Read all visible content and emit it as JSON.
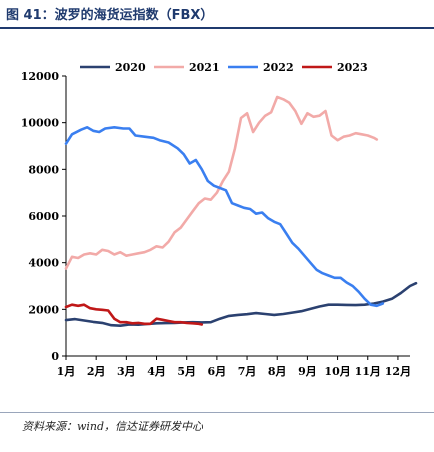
{
  "figure": {
    "title": "图 41：波罗的海货运指数（FBX）",
    "source": "资料来源：wind，信达证券研发中心"
  },
  "chart_data": {
    "type": "line",
    "categories": [
      "1月",
      "2月",
      "3月",
      "4月",
      "5月",
      "6月",
      "7月",
      "8月",
      "9月",
      "10月",
      "11月",
      "12月"
    ],
    "x_domain": [
      1,
      12.4
    ],
    "ylim": [
      0,
      12000
    ],
    "yticks": [
      0,
      2000,
      4000,
      6000,
      8000,
      10000,
      12000
    ],
    "grid": false,
    "legend_position": "top",
    "series": [
      {
        "name": "2020",
        "color": "#2b4170",
        "points": [
          [
            1.0,
            1540
          ],
          [
            1.3,
            1580
          ],
          [
            1.6,
            1520
          ],
          [
            1.9,
            1460
          ],
          [
            2.2,
            1420
          ],
          [
            2.5,
            1320
          ],
          [
            2.8,
            1300
          ],
          [
            3.1,
            1350
          ],
          [
            3.4,
            1340
          ],
          [
            3.7,
            1370
          ],
          [
            4.0,
            1400
          ],
          [
            4.3,
            1410
          ],
          [
            4.6,
            1420
          ],
          [
            4.9,
            1440
          ],
          [
            5.2,
            1450
          ],
          [
            5.5,
            1440
          ],
          [
            5.8,
            1450
          ],
          [
            6.1,
            1600
          ],
          [
            6.4,
            1720
          ],
          [
            6.7,
            1760
          ],
          [
            7.0,
            1790
          ],
          [
            7.3,
            1840
          ],
          [
            7.6,
            1800
          ],
          [
            7.9,
            1760
          ],
          [
            8.2,
            1800
          ],
          [
            8.5,
            1860
          ],
          [
            8.8,
            1920
          ],
          [
            9.1,
            2020
          ],
          [
            9.4,
            2120
          ],
          [
            9.7,
            2200
          ],
          [
            10.0,
            2200
          ],
          [
            10.3,
            2190
          ],
          [
            10.6,
            2180
          ],
          [
            10.9,
            2200
          ],
          [
            11.2,
            2250
          ],
          [
            11.5,
            2330
          ],
          [
            11.8,
            2450
          ],
          [
            12.1,
            2700
          ],
          [
            12.4,
            3000
          ],
          [
            12.6,
            3120
          ]
        ]
      },
      {
        "name": "2021",
        "color": "#f2aaa8",
        "points": [
          [
            1.0,
            3750
          ],
          [
            1.2,
            4250
          ],
          [
            1.4,
            4200
          ],
          [
            1.6,
            4350
          ],
          [
            1.8,
            4400
          ],
          [
            2.0,
            4350
          ],
          [
            2.2,
            4550
          ],
          [
            2.4,
            4500
          ],
          [
            2.6,
            4350
          ],
          [
            2.8,
            4450
          ],
          [
            3.0,
            4300
          ],
          [
            3.2,
            4350
          ],
          [
            3.4,
            4400
          ],
          [
            3.6,
            4450
          ],
          [
            3.8,
            4550
          ],
          [
            4.0,
            4700
          ],
          [
            4.2,
            4650
          ],
          [
            4.4,
            4900
          ],
          [
            4.6,
            5300
          ],
          [
            4.8,
            5500
          ],
          [
            5.0,
            5850
          ],
          [
            5.2,
            6200
          ],
          [
            5.4,
            6550
          ],
          [
            5.6,
            6750
          ],
          [
            5.8,
            6700
          ],
          [
            6.0,
            7000
          ],
          [
            6.2,
            7500
          ],
          [
            6.4,
            7900
          ],
          [
            6.6,
            8900
          ],
          [
            6.8,
            10200
          ],
          [
            7.0,
            10400
          ],
          [
            7.2,
            9600
          ],
          [
            7.4,
            10000
          ],
          [
            7.6,
            10300
          ],
          [
            7.8,
            10450
          ],
          [
            8.0,
            11100
          ],
          [
            8.2,
            11000
          ],
          [
            8.4,
            10850
          ],
          [
            8.6,
            10500
          ],
          [
            8.8,
            9950
          ],
          [
            9.0,
            10400
          ],
          [
            9.2,
            10250
          ],
          [
            9.4,
            10300
          ],
          [
            9.6,
            10500
          ],
          [
            9.8,
            9450
          ],
          [
            10.0,
            9250
          ],
          [
            10.2,
            9400
          ],
          [
            10.4,
            9450
          ],
          [
            10.6,
            9550
          ],
          [
            10.8,
            9500
          ],
          [
            11.0,
            9450
          ],
          [
            11.2,
            9350
          ],
          [
            11.3,
            9280
          ]
        ]
      },
      {
        "name": "2022",
        "color": "#3a7ff0",
        "points": [
          [
            1.0,
            9100
          ],
          [
            1.2,
            9500
          ],
          [
            1.5,
            9700
          ],
          [
            1.7,
            9800
          ],
          [
            1.9,
            9650
          ],
          [
            2.1,
            9600
          ],
          [
            2.3,
            9750
          ],
          [
            2.6,
            9800
          ],
          [
            2.9,
            9750
          ],
          [
            3.1,
            9750
          ],
          [
            3.3,
            9450
          ],
          [
            3.6,
            9400
          ],
          [
            3.9,
            9350
          ],
          [
            4.1,
            9250
          ],
          [
            4.4,
            9150
          ],
          [
            4.7,
            8900
          ],
          [
            4.9,
            8650
          ],
          [
            5.1,
            8250
          ],
          [
            5.3,
            8400
          ],
          [
            5.5,
            8000
          ],
          [
            5.7,
            7500
          ],
          [
            5.9,
            7300
          ],
          [
            6.1,
            7200
          ],
          [
            6.3,
            7100
          ],
          [
            6.5,
            6550
          ],
          [
            6.7,
            6450
          ],
          [
            6.9,
            6350
          ],
          [
            7.1,
            6300
          ],
          [
            7.3,
            6100
          ],
          [
            7.5,
            6150
          ],
          [
            7.7,
            5900
          ],
          [
            7.9,
            5750
          ],
          [
            8.1,
            5650
          ],
          [
            8.3,
            5250
          ],
          [
            8.5,
            4850
          ],
          [
            8.7,
            4600
          ],
          [
            8.9,
            4300
          ],
          [
            9.1,
            4000
          ],
          [
            9.3,
            3700
          ],
          [
            9.5,
            3550
          ],
          [
            9.7,
            3450
          ],
          [
            9.9,
            3350
          ],
          [
            10.1,
            3350
          ],
          [
            10.3,
            3150
          ],
          [
            10.5,
            3000
          ],
          [
            10.7,
            2750
          ],
          [
            10.9,
            2450
          ],
          [
            11.1,
            2200
          ],
          [
            11.3,
            2150
          ],
          [
            11.5,
            2250
          ]
        ]
      },
      {
        "name": "2023",
        "color": "#c01818",
        "points": [
          [
            1.0,
            2100
          ],
          [
            1.2,
            2200
          ],
          [
            1.4,
            2150
          ],
          [
            1.6,
            2200
          ],
          [
            1.8,
            2050
          ],
          [
            2.0,
            2000
          ],
          [
            2.2,
            1980
          ],
          [
            2.4,
            1950
          ],
          [
            2.6,
            1600
          ],
          [
            2.8,
            1450
          ],
          [
            3.0,
            1450
          ],
          [
            3.2,
            1400
          ],
          [
            3.4,
            1420
          ],
          [
            3.6,
            1380
          ],
          [
            3.8,
            1380
          ],
          [
            4.0,
            1600
          ],
          [
            4.2,
            1550
          ],
          [
            4.4,
            1500
          ],
          [
            4.6,
            1450
          ],
          [
            4.8,
            1450
          ],
          [
            5.0,
            1420
          ],
          [
            5.2,
            1400
          ],
          [
            5.4,
            1380
          ],
          [
            5.5,
            1350
          ]
        ]
      }
    ]
  }
}
